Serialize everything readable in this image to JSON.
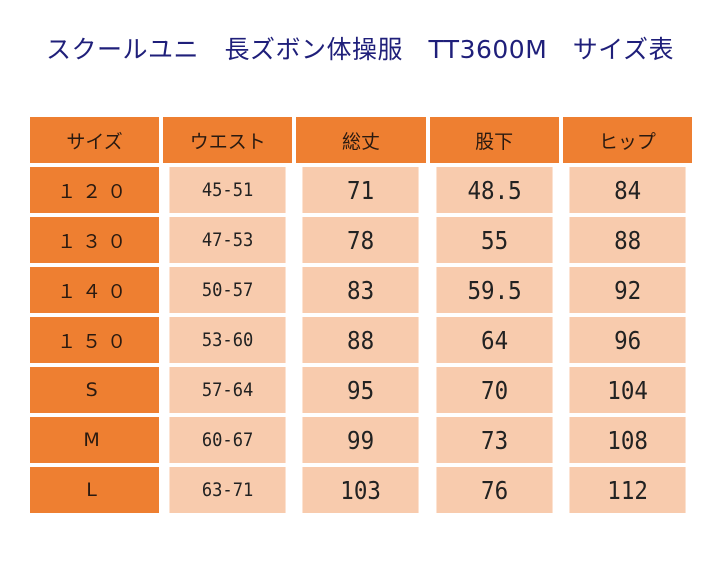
{
  "title": "スクールユニ　長ズボン体操服　TT3600M　サイズ表",
  "table": {
    "headers": [
      "サイズ",
      "ウエスト",
      "総丈",
      "股下",
      "ヒップ"
    ],
    "rows": [
      {
        "size": "１２０",
        "waist": "45-51",
        "length": "71",
        "inseam": "48.5",
        "hip": "84"
      },
      {
        "size": "１３０",
        "waist": "47-53",
        "length": "78",
        "inseam": "55",
        "hip": "88"
      },
      {
        "size": "１４０",
        "waist": "50-57",
        "length": "83",
        "inseam": "59.5",
        "hip": "92"
      },
      {
        "size": "１５０",
        "waist": "53-60",
        "length": "88",
        "inseam": "64",
        "hip": "96"
      },
      {
        "size": "S",
        "waist": "57-64",
        "length": "95",
        "inseam": "70",
        "hip": "104"
      },
      {
        "size": "M",
        "waist": "60-67",
        "length": "99",
        "inseam": "73",
        "hip": "108"
      },
      {
        "size": "L",
        "waist": "63-71",
        "length": "103",
        "inseam": "76",
        "hip": "112"
      }
    ]
  },
  "colors": {
    "header_bg": "#ee7f31",
    "cell_bg": "#f8cbad",
    "title_text": "#1f1f7a"
  }
}
